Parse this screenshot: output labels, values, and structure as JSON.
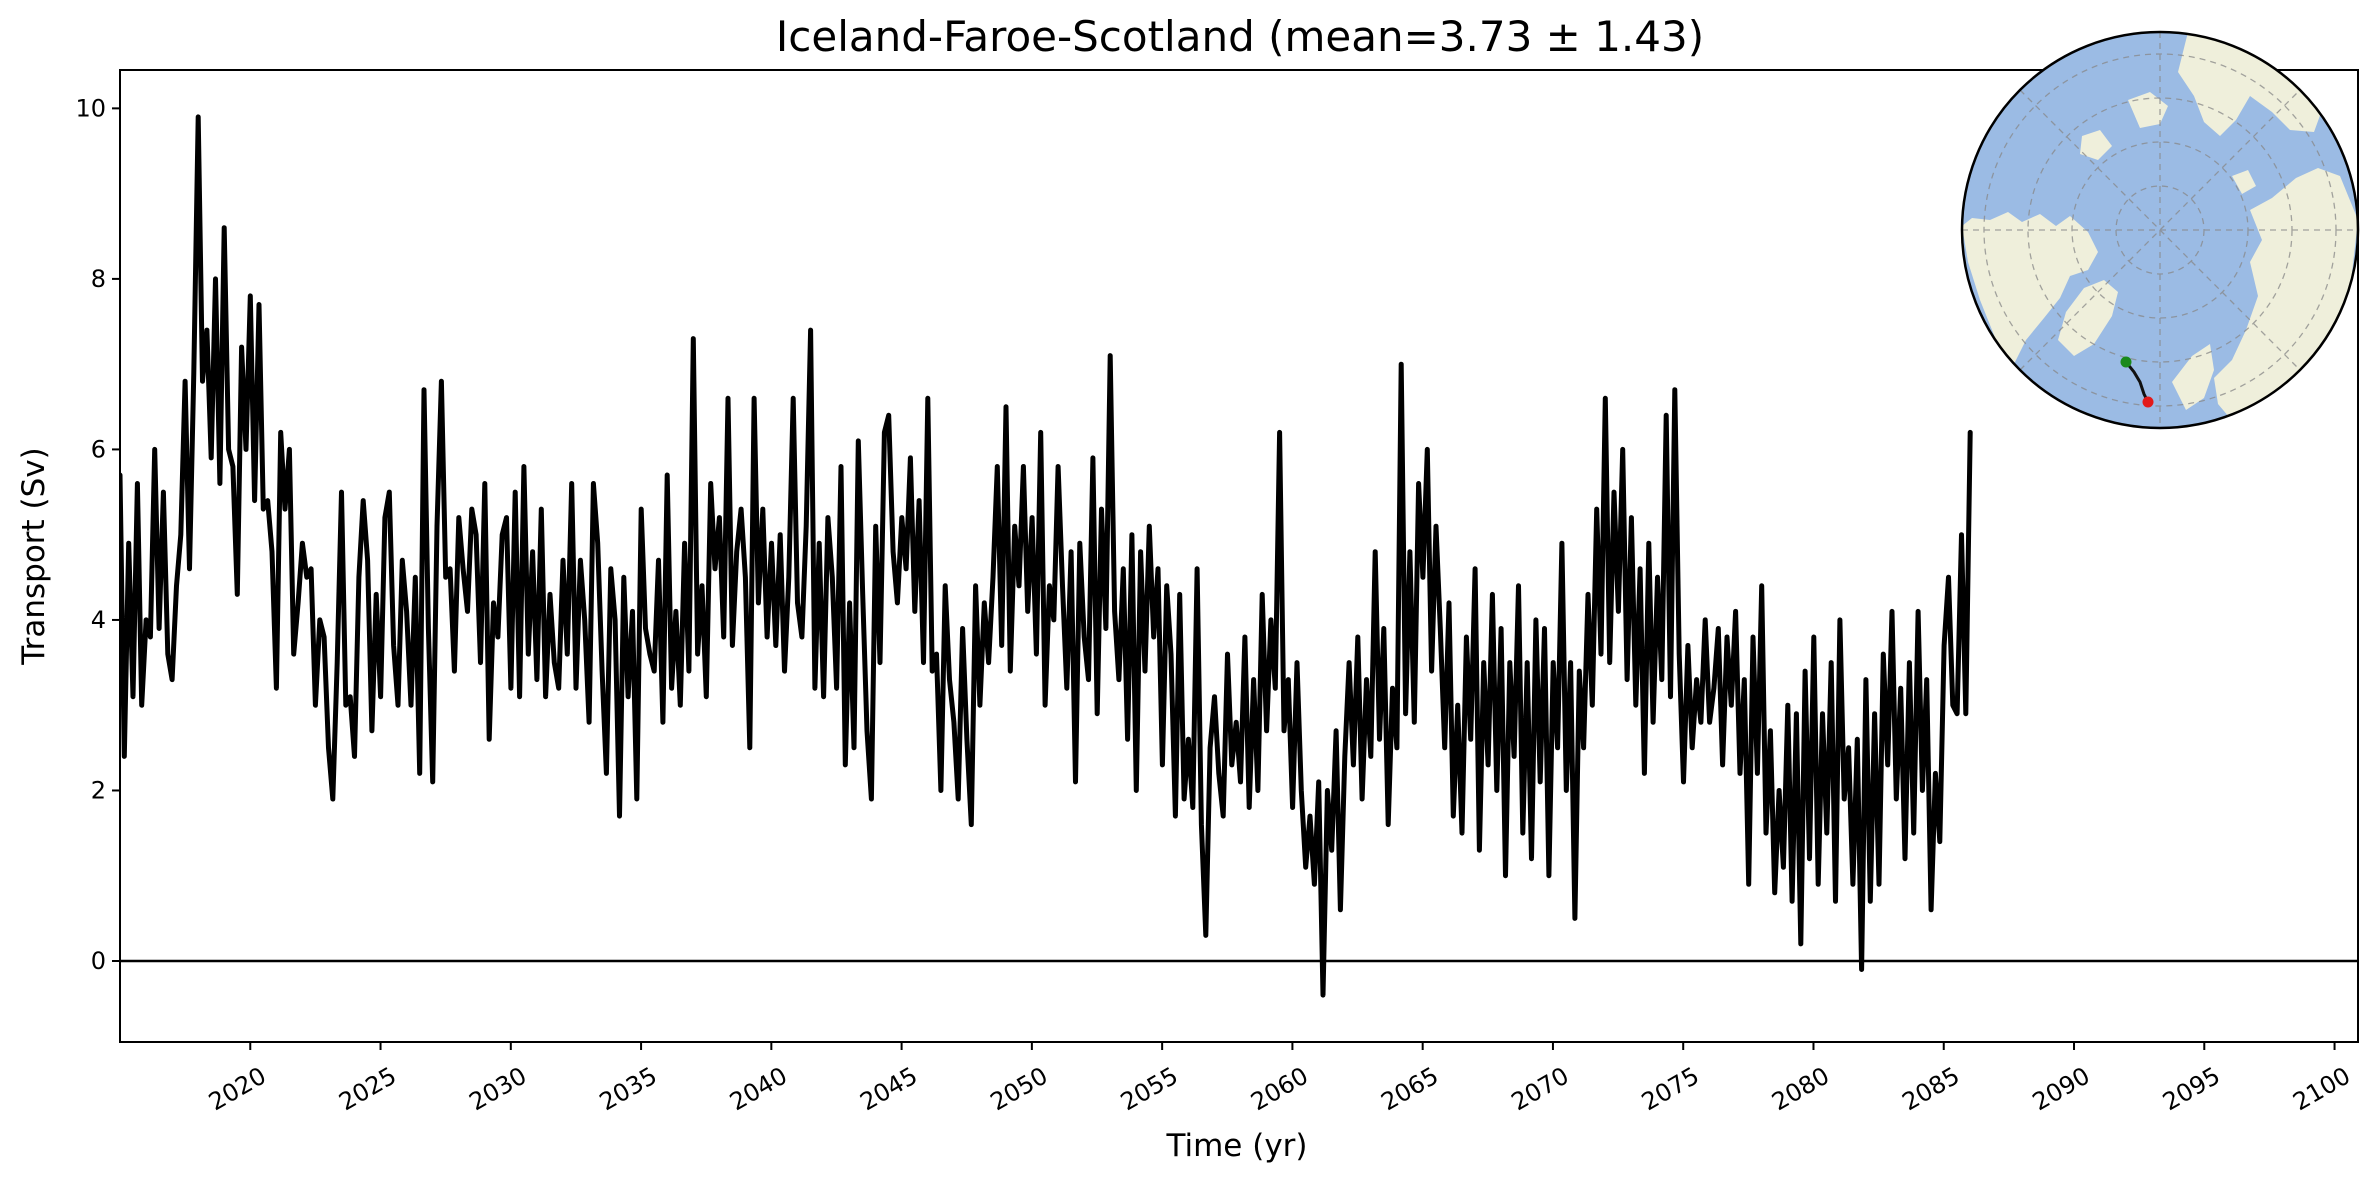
{
  "chart_data": {
    "type": "line",
    "title": "Iceland-Faroe-Scotland (mean=3.73 ± 1.43)",
    "xlabel": "Time (yr)",
    "ylabel": "Transport (Sv)",
    "xlim": [
      2015.0,
      2100.9
    ],
    "ylim": [
      -0.95,
      10.45
    ],
    "x_ticks": [
      "2020",
      "2025",
      "2030",
      "2035",
      "2040",
      "2045",
      "2050",
      "2055",
      "2060",
      "2065",
      "2070",
      "2075",
      "2080",
      "2085",
      "2090",
      "2095",
      "2100"
    ],
    "y_ticks": [
      "0",
      "2",
      "4",
      "6",
      "8",
      "10"
    ],
    "grid": false,
    "zero_line": 0,
    "series": [
      {
        "color": "#000000",
        "sampling": "monthly values, approximated as 2-month averages",
        "x_start": 2015.0,
        "x_step": 0.1667,
        "values": [
          5.7,
          2.4,
          4.9,
          3.1,
          5.6,
          3.0,
          4.0,
          3.8,
          6.0,
          3.9,
          5.5,
          3.6,
          3.3,
          4.4,
          5.0,
          6.8,
          4.6,
          6.9,
          9.9,
          6.8,
          7.4,
          5.9,
          8.0,
          5.6,
          8.6,
          6.0,
          5.8,
          4.3,
          7.2,
          6.0,
          7.8,
          5.4,
          7.7,
          5.3,
          5.4,
          4.8,
          3.2,
          6.2,
          5.3,
          6.0,
          3.6,
          4.2,
          4.9,
          4.5,
          4.6,
          3.0,
          4.0,
          3.8,
          2.5,
          1.9,
          3.5,
          5.5,
          3.0,
          3.1,
          2.4,
          4.5,
          5.4,
          4.7,
          2.7,
          4.3,
          3.1,
          5.2,
          5.5,
          3.7,
          3.0,
          4.7,
          4.1,
          3.0,
          4.5,
          2.2,
          6.7,
          3.9,
          2.1,
          5.1,
          6.8,
          4.5,
          4.6,
          3.4,
          5.2,
          4.6,
          4.1,
          5.3,
          5.0,
          3.5,
          5.6,
          2.6,
          4.2,
          3.8,
          5.0,
          5.2,
          3.2,
          5.5,
          3.1,
          5.8,
          3.6,
          4.8,
          3.3,
          5.3,
          3.1,
          4.3,
          3.5,
          3.2,
          4.7,
          3.6,
          5.6,
          3.2,
          4.7,
          4.0,
          2.8,
          5.6,
          4.9,
          3.4,
          2.2,
          4.6,
          4.0,
          1.7,
          4.5,
          3.1,
          4.1,
          1.9,
          5.3,
          3.9,
          3.6,
          3.4,
          4.7,
          2.8,
          5.7,
          3.2,
          4.1,
          3.0,
          4.9,
          3.4,
          7.3,
          3.6,
          4.4,
          3.1,
          5.6,
          4.6,
          5.2,
          3.8,
          6.6,
          3.7,
          4.8,
          5.3,
          4.5,
          2.5,
          6.6,
          4.2,
          5.3,
          3.8,
          4.9,
          3.7,
          5.0,
          3.4,
          4.5,
          6.6,
          4.2,
          3.8,
          5.1,
          7.4,
          3.2,
          4.9,
          3.1,
          5.2,
          4.5,
          3.2,
          5.8,
          2.3,
          4.2,
          2.5,
          6.1,
          4.3,
          2.7,
          1.9,
          5.1,
          3.5,
          6.2,
          6.4,
          4.8,
          4.2,
          5.2,
          4.6,
          5.9,
          4.1,
          5.4,
          3.5,
          6.6,
          3.4,
          3.6,
          2.0,
          4.4,
          3.3,
          2.8,
          1.9,
          3.9,
          2.6,
          1.6,
          4.4,
          3.0,
          4.2,
          3.5,
          4.5,
          5.8,
          3.7,
          6.5,
          3.4,
          5.1,
          4.4,
          5.8,
          4.1,
          5.2,
          3.6,
          6.2,
          3.0,
          4.4,
          4.0,
          5.8,
          4.4,
          3.2,
          4.8,
          2.1,
          4.9,
          3.8,
          3.3,
          5.9,
          2.9,
          5.3,
          3.9,
          7.1,
          4.1,
          3.3,
          4.6,
          2.6,
          5.0,
          2.0,
          4.8,
          3.4,
          5.1,
          3.8,
          4.6,
          2.3,
          4.4,
          3.6,
          1.7,
          4.3,
          1.9,
          2.6,
          1.8,
          4.6,
          1.6,
          0.3,
          2.5,
          3.1,
          2.2,
          1.7,
          3.6,
          2.3,
          2.8,
          2.1,
          3.8,
          1.8,
          3.3,
          2.0,
          4.3,
          2.7,
          4.0,
          3.2,
          6.2,
          2.7,
          3.3,
          1.8,
          3.5,
          2.0,
          1.1,
          1.7,
          0.9,
          2.1,
          -0.4,
          2.0,
          1.3,
          2.7,
          0.6,
          2.4,
          3.5,
          2.3,
          3.8,
          1.9,
          3.3,
          2.4,
          4.8,
          2.6,
          3.9,
          1.6,
          3.2,
          2.5,
          7.0,
          2.9,
          4.8,
          2.8,
          5.6,
          4.5,
          6.0,
          3.4,
          5.1,
          3.9,
          2.5,
          4.2,
          1.7,
          3.0,
          1.5,
          3.8,
          2.6,
          4.6,
          1.3,
          3.5,
          2.3,
          4.3,
          2.0,
          3.9,
          1.0,
          3.5,
          2.4,
          4.4,
          1.5,
          3.5,
          1.2,
          4.0,
          2.1,
          3.9,
          1.0,
          3.5,
          2.5,
          4.9,
          2.0,
          3.5,
          0.5,
          3.4,
          2.5,
          4.3,
          3.0,
          5.3,
          3.6,
          6.6,
          3.5,
          5.5,
          4.1,
          6.0,
          3.3,
          5.2,
          3.0,
          4.6,
          2.2,
          4.9,
          2.8,
          4.5,
          3.3,
          6.4,
          3.1,
          6.7,
          3.6,
          2.1,
          3.7,
          2.5,
          3.3,
          2.8,
          4.0,
          2.8,
          3.2,
          3.9,
          2.3,
          3.8,
          3.0,
          4.1,
          2.2,
          3.3,
          0.9,
          3.8,
          2.2,
          4.4,
          1.5,
          2.7,
          0.8,
          2.0,
          1.1,
          3.0,
          0.7,
          2.9,
          0.2,
          3.4,
          1.2,
          3.8,
          0.9,
          2.9,
          1.5,
          3.5,
          0.7,
          4.0,
          1.9,
          2.5,
          0.9,
          2.6,
          -0.1,
          3.3,
          0.7,
          2.9,
          0.9,
          3.6,
          2.3,
          4.1,
          1.9,
          3.2,
          1.2,
          3.5,
          1.5,
          4.1,
          2.0,
          3.3,
          0.6,
          2.2,
          1.4,
          3.7,
          4.5,
          3.0,
          2.9,
          5.0,
          2.9,
          6.2
        ]
      }
    ]
  },
  "inset_map": {
    "kind": "north-polar globe",
    "ocean_color": "#9bbbe4",
    "land_color": "#efefdb",
    "section_start_color": "#1a8a1a",
    "section_end_color": "#e31a1a"
  }
}
